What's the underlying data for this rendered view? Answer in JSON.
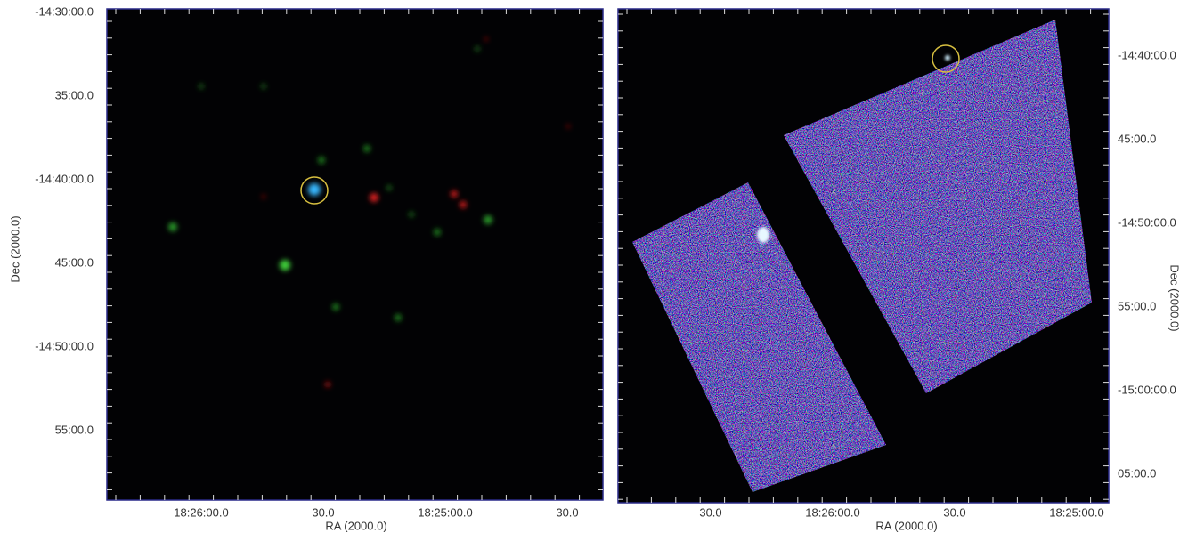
{
  "left_panel": {
    "y_ticks": [
      "-14:30:00.0",
      "35:00.0",
      "-14:40:00.0",
      "45:00.0",
      "-14:50:00.0",
      "55:00.0"
    ],
    "x_ticks": [
      "18:26:00.0",
      "30.0",
      "18:25:00.0",
      "30.0"
    ],
    "x_label": "RA (2000.0)",
    "y_label": "Dec (2000.0)"
  },
  "right_panel": {
    "y_ticks": [
      "-14:40:00.0",
      "45:00.0",
      "-14:50:00.0",
      "55:00.0",
      "-15:00:00.0",
      "05:00.0"
    ],
    "x_ticks": [
      "30.0",
      "18:26:00.0",
      "30.0",
      "18:25:00.0"
    ],
    "x_label": "RA (2000.0)",
    "y_label": "Dec (2000.0)"
  }
}
